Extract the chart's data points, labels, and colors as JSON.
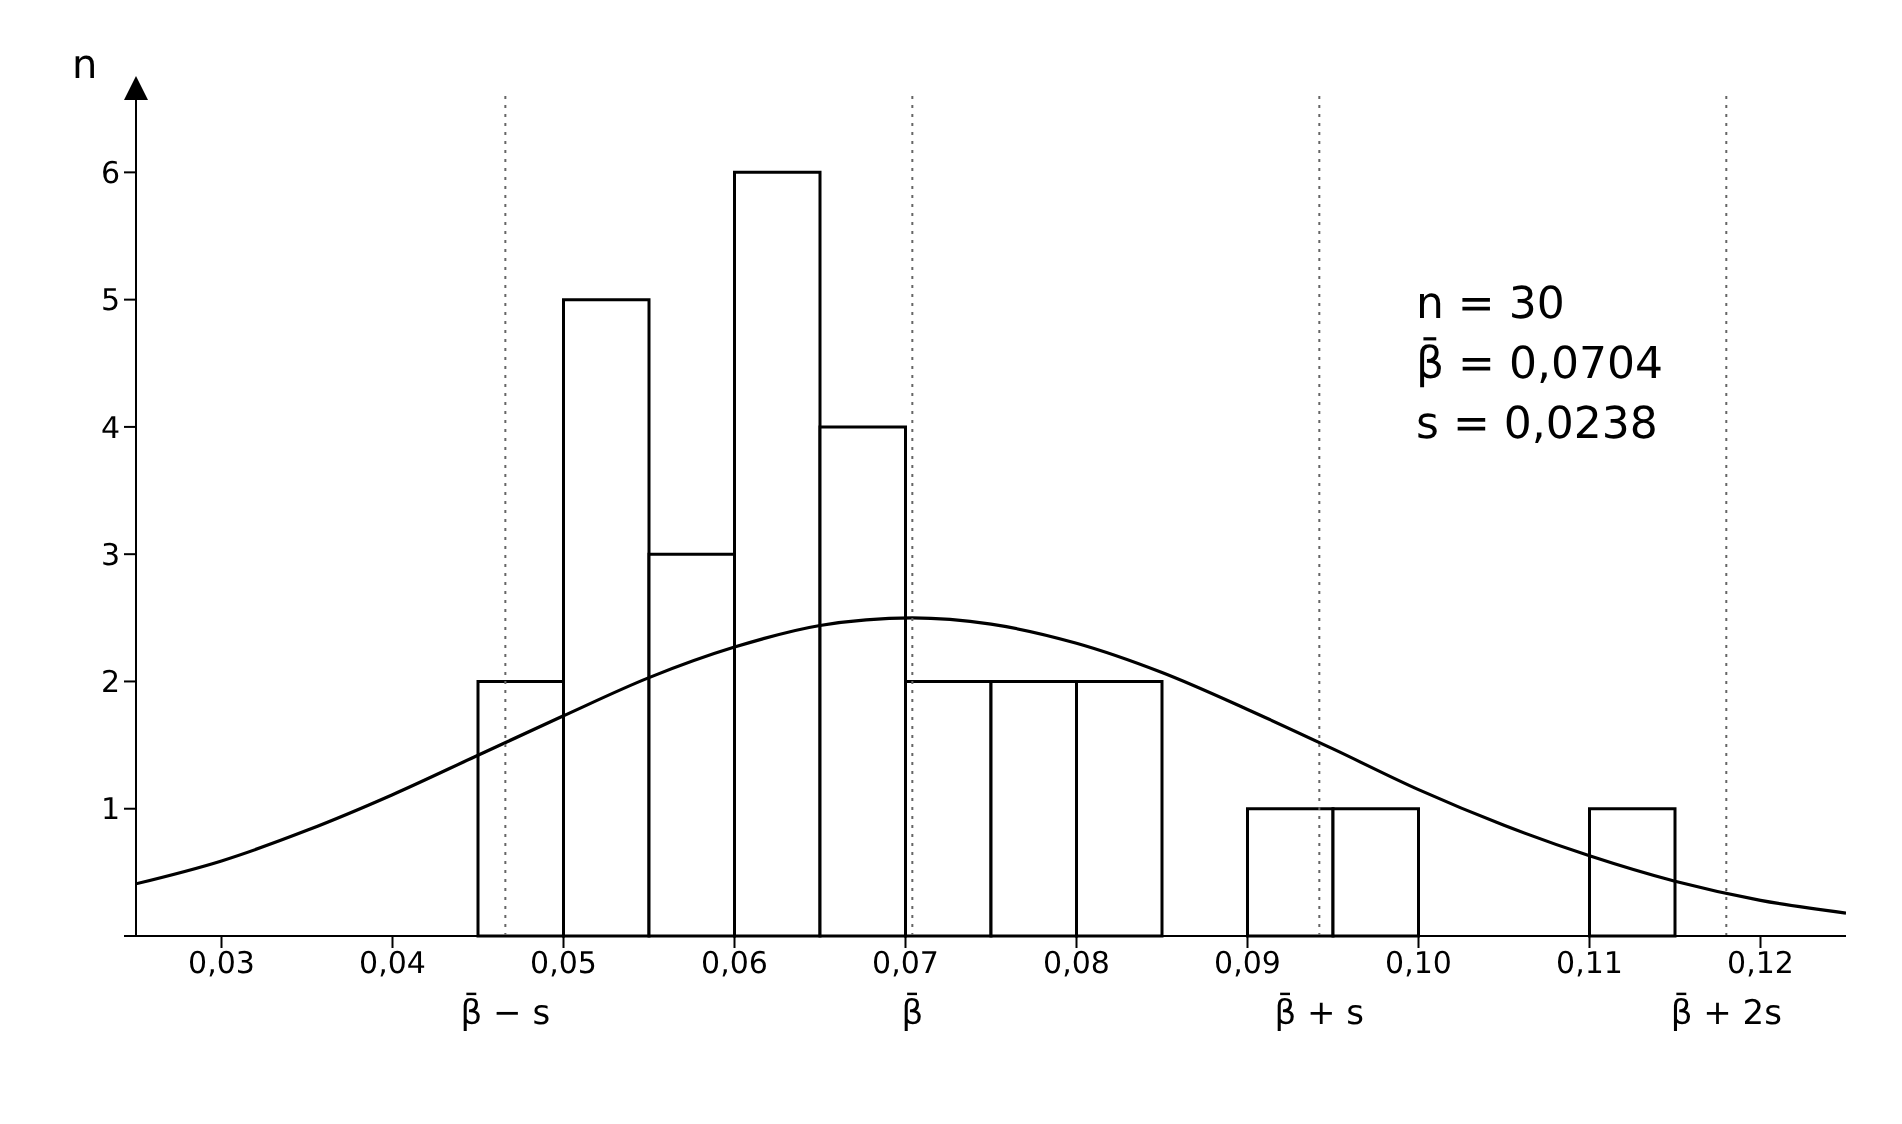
{
  "chart_data": {
    "type": "histogram",
    "ylabel": "n",
    "xlim": [
      0.025,
      0.125
    ],
    "xticks": [
      {
        "value": 0.03,
        "label": "0,03"
      },
      {
        "value": 0.04,
        "label": "0,04"
      },
      {
        "value": 0.05,
        "label": "0,05"
      },
      {
        "value": 0.06,
        "label": "0,06"
      },
      {
        "value": 0.07,
        "label": "0,07"
      },
      {
        "value": 0.08,
        "label": "0,08"
      },
      {
        "value": 0.09,
        "label": "0,09"
      },
      {
        "value": 0.1,
        "label": "0,10"
      },
      {
        "value": 0.11,
        "label": "0,11"
      },
      {
        "value": 0.12,
        "label": "0,12"
      }
    ],
    "ref_lines": [
      {
        "axis": "x",
        "value": 0.0466,
        "label": "β̄ − s",
        "line_style": "dotted"
      },
      {
        "axis": "x",
        "value": 0.0704,
        "label": "β̄",
        "line_style": "dotted"
      },
      {
        "axis": "x",
        "value": 0.0942,
        "label": "β̄ + s",
        "line_style": "dotted"
      },
      {
        "axis": "x",
        "value": 0.118,
        "label": "β̄ + 2s",
        "line_style": "dotted"
      }
    ],
    "ylim": [
      0,
      6.6
    ],
    "yticks": [
      {
        "value": 0,
        "label": null
      },
      1,
      2,
      3,
      4,
      5,
      6
    ],
    "series": [
      {
        "color": "#000000",
        "bins": [
          0.045,
          0.05,
          0.055,
          0.06,
          0.065,
          0.07,
          0.075,
          0.08,
          0.085,
          0.09,
          0.095,
          0.1,
          0.105,
          0.11,
          0.115
        ],
        "values": [
          2,
          5,
          3,
          6,
          4,
          2,
          2,
          2,
          0,
          1,
          1,
          0,
          0,
          1
        ]
      },
      {
        "type": "line",
        "color": "#000000",
        "x": [
          0.025,
          0.03,
          0.035,
          0.04,
          0.045,
          0.05,
          0.055,
          0.06,
          0.065,
          0.0704,
          0.075,
          0.08,
          0.085,
          0.09,
          0.095,
          0.1,
          0.105,
          0.11,
          0.115,
          0.12,
          0.125
        ],
        "values": [
          0.41,
          0.59,
          0.83,
          1.11,
          1.42,
          1.73,
          2.03,
          2.27,
          2.44,
          2.5,
          2.45,
          2.3,
          2.07,
          1.78,
          1.47,
          1.15,
          0.87,
          0.63,
          0.43,
          0.28,
          0.18
        ]
      }
    ],
    "annotations": [
      "n = 30",
      "β̄ = 0,0704",
      "s = 0,0238"
    ]
  }
}
